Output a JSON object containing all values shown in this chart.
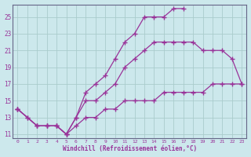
{
  "xlabel": "Windchill (Refroidissement éolien,°C)",
  "bg_color": "#cce8ec",
  "grid_color": "#aacccc",
  "line_color": "#993399",
  "xlim": [
    -0.5,
    23.5
  ],
  "ylim": [
    10.5,
    26.5
  ],
  "yticks": [
    11,
    13,
    15,
    17,
    19,
    21,
    23,
    25
  ],
  "xticks": [
    0,
    1,
    2,
    3,
    4,
    5,
    6,
    7,
    8,
    9,
    10,
    11,
    12,
    13,
    14,
    15,
    16,
    17,
    18,
    19,
    20,
    21,
    22,
    23
  ],
  "line1_x": [
    0,
    1,
    2,
    3,
    4,
    5,
    6,
    7,
    8,
    9,
    10,
    11,
    12,
    13,
    14,
    15,
    16,
    17
  ],
  "line1_y": [
    14,
    13,
    12,
    12,
    12,
    11,
    13,
    16,
    17,
    18,
    20,
    22,
    23,
    25,
    25,
    25,
    26,
    26
  ],
  "line2_x": [
    0,
    2,
    3,
    4,
    5,
    6,
    7,
    8,
    9,
    10,
    11,
    12,
    13,
    14,
    15,
    16,
    17,
    18,
    19,
    20,
    21,
    22,
    23
  ],
  "line2_y": [
    14,
    12,
    12,
    12,
    11,
    13,
    15,
    15,
    16,
    17,
    19,
    20,
    21,
    22,
    22,
    22,
    22,
    22,
    21,
    21,
    21,
    20,
    17
  ],
  "line3_x": [
    0,
    1,
    2,
    3,
    4,
    5,
    6,
    7,
    8,
    9,
    10,
    11,
    12,
    13,
    14,
    15,
    16,
    17,
    18,
    19,
    20,
    21,
    22,
    23
  ],
  "line3_y": [
    14,
    13,
    12,
    12,
    12,
    11,
    12,
    13,
    13,
    14,
    14,
    15,
    15,
    15,
    15,
    16,
    16,
    16,
    16,
    16,
    17,
    17,
    17,
    17
  ]
}
